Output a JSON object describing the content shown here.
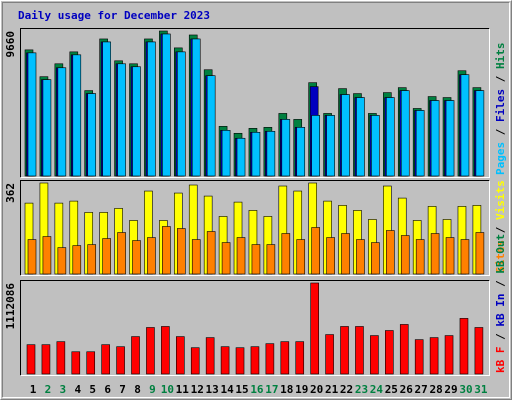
{
  "title": "Daily usage for December 2023",
  "legend_separator": " / ",
  "categories": [
    "1",
    "2",
    "3",
    "4",
    "5",
    "6",
    "7",
    "8",
    "9",
    "10",
    "11",
    "12",
    "13",
    "14",
    "15",
    "16",
    "17",
    "18",
    "19",
    "20",
    "21",
    "22",
    "23",
    "24",
    "25",
    "26",
    "27",
    "28",
    "29",
    "30",
    "31"
  ],
  "category_colors": [
    "#000000",
    "#008040",
    "#008040",
    "#000000",
    "#000000",
    "#000000",
    "#000000",
    "#000000",
    "#008040",
    "#008040",
    "#000000",
    "#000000",
    "#000000",
    "#000000",
    "#000000",
    "#008040",
    "#008040",
    "#000000",
    "#000000",
    "#000000",
    "#000000",
    "#000000",
    "#008040",
    "#008040",
    "#000000",
    "#000000",
    "#000000",
    "#000000",
    "#000000",
    "#008040",
    "#008040"
  ],
  "chart_data": [
    {
      "type": "bar",
      "ylim": [
        0,
        9660
      ],
      "yticks": [
        9660
      ],
      "series": [
        {
          "name": "Hits",
          "color": "#008040",
          "values": [
            8403,
            6616,
            7476,
            8270,
            5690,
            9130,
            7675,
            7476,
            9130,
            9660,
            8535,
            9395,
            7079,
            3308,
            2845,
            3176,
            3242,
            4168,
            3771,
            6219,
            4168,
            5822,
            5491,
            4168,
            5557,
            5888,
            4499,
            5293,
            5227,
            7013,
            5888
          ]
        },
        {
          "name": "Files",
          "color": "#0000c0",
          "values": [
            8204,
            6418,
            7211,
            8072,
            5491,
            8932,
            7476,
            7278,
            8932,
            9461,
            8270,
            9130,
            6682,
            3043,
            2514,
            2911,
            2977,
            3771,
            3242,
            5954,
            4036,
            5425,
            5227,
            4036,
            5227,
            5690,
            4367,
            5028,
            5028,
            6748,
            5690
          ]
        },
        {
          "name": "Pages",
          "color": "#00c0ff",
          "values": [
            8204,
            6418,
            7211,
            8072,
            5491,
            8932,
            7476,
            7278,
            8932,
            9461,
            8270,
            9130,
            6682,
            3043,
            2514,
            2911,
            2977,
            3771,
            3242,
            4036,
            4036,
            5425,
            5227,
            4036,
            5227,
            5690,
            4367,
            5028,
            5028,
            6748,
            5690
          ]
        }
      ]
    },
    {
      "type": "bar",
      "ylim": [
        0,
        362
      ],
      "yticks": [
        362
      ],
      "series": [
        {
          "name": "Visits",
          "color": "#ffff00",
          "values": [
            282,
            362,
            282,
            290,
            245,
            245,
            261,
            213,
            330,
            213,
            322,
            354,
            310,
            229,
            286,
            253,
            229,
            350,
            330,
            362,
            290,
            273,
            253,
            217,
            350,
            302,
            213,
            269,
            217,
            269,
            273
          ]
        },
        {
          "name": "Sites",
          "color": "#ff8000",
          "values": [
            137,
            149,
            105,
            113,
            117,
            141,
            165,
            133,
            145,
            189,
            181,
            137,
            169,
            125,
            145,
            117,
            117,
            161,
            137,
            185,
            145,
            161,
            137,
            125,
            173,
            153,
            137,
            161,
            145,
            137,
            165
          ]
        }
      ]
    },
    {
      "type": "bar",
      "ylim": [
        0,
        1112086
      ],
      "yticks": [
        1112086
      ],
      "series": [
        {
          "name": "kB F",
          "color": "#ff0000",
          "values": [
            358339,
            358339,
            395408,
            271843,
            271843,
            358339,
            333626,
            457191,
            568399,
            580756,
            457191,
            321269,
            444834,
            333626,
            321269,
            333626,
            370695,
            395408,
            395408,
            1112086,
            481904,
            580756,
            580756,
            469547,
            531330,
            605469,
            420121,
            444834,
            469547,
            679608,
            568399
          ]
        }
      ],
      "legend_only": [
        {
          "name": "kB In",
          "color": "#0000c0"
        },
        {
          "name": "kB Out",
          "color": "#008040"
        }
      ]
    }
  ]
}
